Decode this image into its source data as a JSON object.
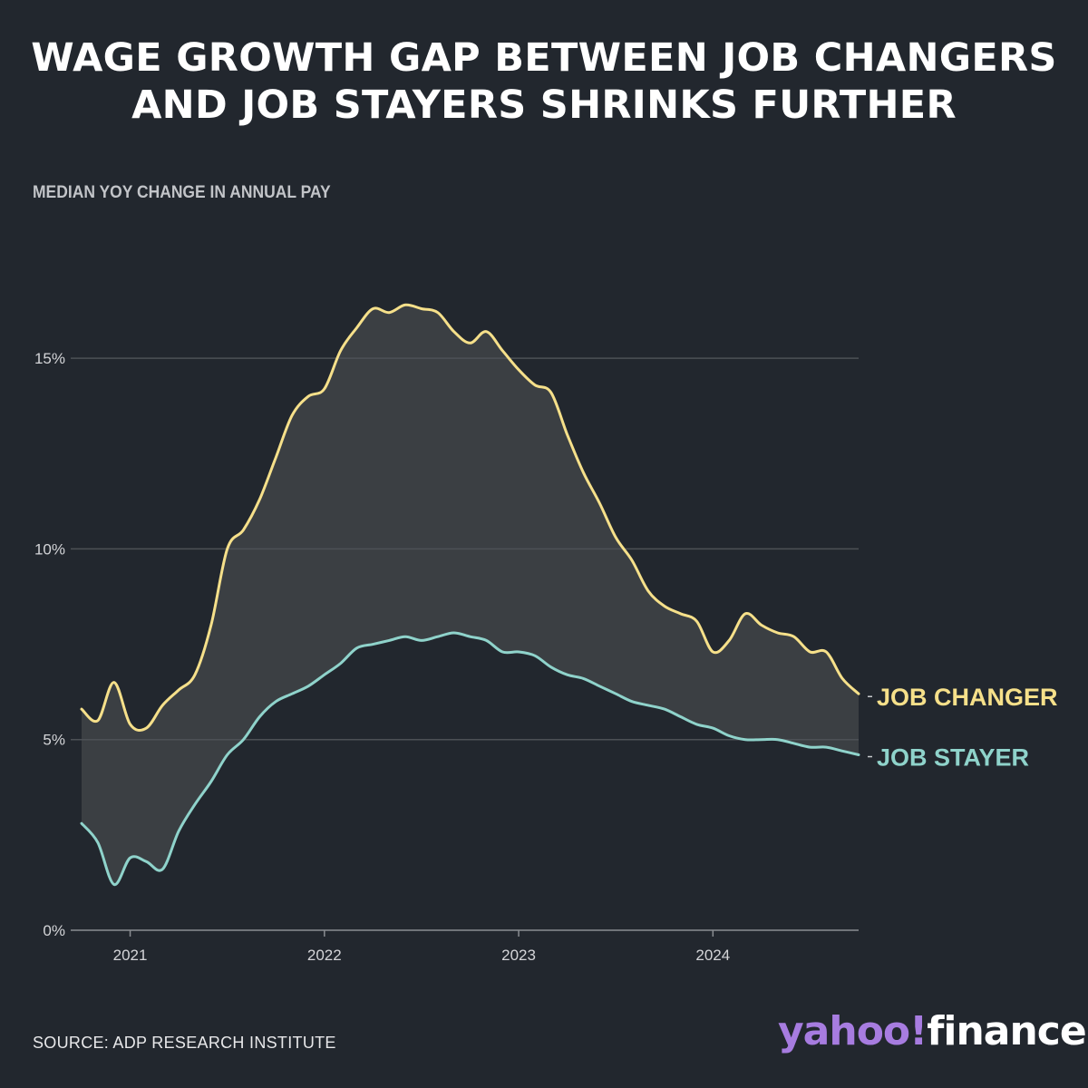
{
  "title": {
    "line1": "WAGE GROWTH GAP BETWEEN JOB CHANGERS",
    "line2": "AND JOB STAYERS SHRINKS FURTHER"
  },
  "subtitle": "MEDIAN YOY CHANGE IN ANNUAL PAY",
  "source": "SOURCE: ADP RESEARCH INSTITUTE",
  "logo": {
    "part1": "yahoo!",
    "part2": "finance"
  },
  "colors": {
    "background": "#22272e",
    "job_changer": "#f6e08a",
    "job_stayer": "#8fd3cb",
    "gap_fill": "#3b3f43",
    "grid": "#4d5156"
  },
  "chart_data": {
    "type": "line",
    "ylabel": "MEDIAN YOY CHANGE IN ANNUAL PAY",
    "ylim": [
      0,
      17.5
    ],
    "xlim": [
      "2020-10",
      "2024-10"
    ],
    "yticks": [
      {
        "value": 0,
        "label": "0%"
      },
      {
        "value": 5,
        "label": "5%"
      },
      {
        "value": 10,
        "label": "10%"
      },
      {
        "value": 15,
        "label": "15%"
      }
    ],
    "xticks": [
      {
        "value": "2021-01",
        "label": "2021"
      },
      {
        "value": "2022-01",
        "label": "2022"
      },
      {
        "value": "2023-01",
        "label": "2023"
      },
      {
        "value": "2024-01",
        "label": "2024"
      }
    ],
    "grid": true,
    "shade_between_series": true,
    "x": [
      "2020-10",
      "2020-11",
      "2020-12",
      "2021-01",
      "2021-02",
      "2021-03",
      "2021-04",
      "2021-05",
      "2021-06",
      "2021-07",
      "2021-08",
      "2021-09",
      "2021-10",
      "2021-11",
      "2021-12",
      "2022-01",
      "2022-02",
      "2022-03",
      "2022-04",
      "2022-05",
      "2022-06",
      "2022-07",
      "2022-08",
      "2022-09",
      "2022-10",
      "2022-11",
      "2022-12",
      "2023-01",
      "2023-02",
      "2023-03",
      "2023-04",
      "2023-05",
      "2023-06",
      "2023-07",
      "2023-08",
      "2023-09",
      "2023-10",
      "2023-11",
      "2023-12",
      "2024-01",
      "2024-02",
      "2024-03",
      "2024-04",
      "2024-05",
      "2024-06",
      "2024-07",
      "2024-08",
      "2024-09",
      "2024-10"
    ],
    "series": [
      {
        "name": "JOB CHANGER",
        "color": "#f6e08a",
        "values": [
          5.8,
          5.5,
          6.5,
          5.4,
          5.3,
          5.9,
          6.3,
          6.7,
          8.0,
          10.0,
          10.5,
          11.3,
          12.4,
          13.5,
          14.0,
          14.2,
          15.2,
          15.8,
          16.3,
          16.2,
          16.4,
          16.3,
          16.2,
          15.7,
          15.4,
          15.7,
          15.2,
          14.7,
          14.3,
          14.1,
          13.0,
          12.0,
          11.2,
          10.3,
          9.7,
          8.9,
          8.5,
          8.3,
          8.1,
          7.3,
          7.6,
          8.3,
          8.0,
          7.8,
          7.7,
          7.3,
          7.3,
          6.6,
          6.2
        ]
      },
      {
        "name": "JOB STAYER",
        "color": "#8fd3cb",
        "values": [
          2.8,
          2.3,
          1.2,
          1.9,
          1.8,
          1.6,
          2.6,
          3.3,
          3.9,
          4.6,
          5.0,
          5.6,
          6.0,
          6.2,
          6.4,
          6.7,
          7.0,
          7.4,
          7.5,
          7.6,
          7.7,
          7.6,
          7.7,
          7.8,
          7.7,
          7.6,
          7.3,
          7.3,
          7.2,
          6.9,
          6.7,
          6.6,
          6.4,
          6.2,
          6.0,
          5.9,
          5.8,
          5.6,
          5.4,
          5.3,
          5.1,
          5.0,
          5.0,
          5.0,
          4.9,
          4.8,
          4.8,
          4.7,
          4.6
        ]
      }
    ],
    "end_labels": true
  }
}
